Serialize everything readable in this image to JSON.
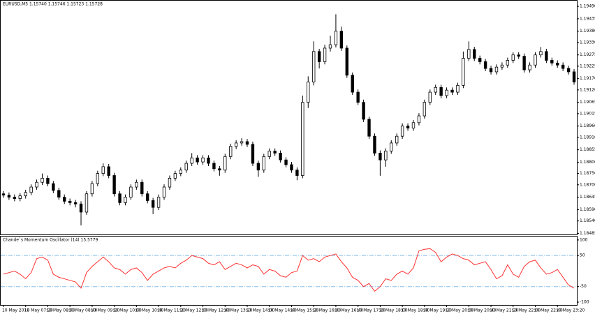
{
  "chart_data": [
    {
      "type": "candlestick",
      "title": "EURUSD,M5 1.15740 1.15746 1.15723 1.15728",
      "open": [
        1.1866,
        1.18654,
        1.18645,
        1.18639,
        1.18651,
        1.18666,
        1.1869,
        1.18711,
        1.18729,
        1.18705,
        1.18675,
        1.18645,
        1.18627,
        1.18621,
        1.18615,
        1.18579,
        1.1866,
        1.18705,
        1.1875,
        1.1878,
        1.18741,
        1.1866,
        1.18621,
        1.18645,
        1.1869,
        1.18711,
        1.1866,
        1.1863,
        1.186,
        1.18645,
        1.1869,
        1.18729,
        1.1875,
        1.18765,
        1.18795,
        1.18819,
        1.18801,
        1.18819,
        1.18795,
        1.18771,
        1.18765,
        1.18825,
        1.1887,
        1.18885,
        1.18891,
        1.18879,
        1.18795,
        1.18765,
        1.18825,
        1.18849,
        1.1884,
        1.1881,
        1.18789,
        1.18765,
        1.18741,
        1.19065,
        1.19155,
        1.1929,
        1.19245,
        1.19305,
        1.1932,
        1.1938,
        1.19305,
        1.19185,
        1.1911,
        1.19065,
        1.1899,
        1.18915,
        1.1884,
        1.1881,
        1.18849,
        1.18885,
        1.18915,
        1.1896,
        1.18951,
        1.18975,
        1.19005,
        1.19065,
        1.1911,
        1.19131,
        1.19095,
        1.19119,
        1.1911,
        1.1914,
        1.1926,
        1.19299,
        1.1926,
        1.19245,
        1.19215,
        1.192,
        1.19221,
        1.1923,
        1.19251,
        1.19275,
        1.19269,
        1.19209,
        1.1923,
        1.19275,
        1.1929,
        1.19251,
        1.19239,
        1.1923,
        1.19215,
        1.192
      ],
      "high": [
        1.18672,
        1.18666,
        1.18657,
        1.18663,
        1.18678,
        1.18702,
        1.18723,
        1.1875,
        1.18741,
        1.18717,
        1.18687,
        1.18657,
        1.18639,
        1.18633,
        1.18627,
        1.18672,
        1.18717,
        1.18762,
        1.18795,
        1.18792,
        1.18753,
        1.18672,
        1.18657,
        1.18702,
        1.18723,
        1.18723,
        1.18672,
        1.18642,
        1.18657,
        1.18702,
        1.18741,
        1.18762,
        1.18777,
        1.18807,
        1.1884,
        1.18831,
        1.18831,
        1.18831,
        1.18807,
        1.18783,
        1.18837,
        1.18882,
        1.18897,
        1.18906,
        1.18903,
        1.18891,
        1.18807,
        1.18837,
        1.18861,
        1.18861,
        1.18852,
        1.18822,
        1.18801,
        1.18777,
        1.19095,
        1.1918,
        1.19335,
        1.19302,
        1.1932,
        1.1936,
        1.19455,
        1.194,
        1.19317,
        1.19197,
        1.19122,
        1.19077,
        1.19002,
        1.18927,
        1.18852,
        1.18861,
        1.18897,
        1.18927,
        1.18972,
        1.18972,
        1.18987,
        1.19017,
        1.19077,
        1.19122,
        1.19143,
        1.19143,
        1.19131,
        1.19131,
        1.19152,
        1.1929,
        1.19335,
        1.19311,
        1.19272,
        1.19257,
        1.19227,
        1.19233,
        1.19242,
        1.19263,
        1.19287,
        1.19287,
        1.19281,
        1.19242,
        1.19287,
        1.1931,
        1.19302,
        1.19263,
        1.19251,
        1.19242,
        1.19227,
        1.19212
      ],
      "low": [
        1.18642,
        1.18633,
        1.18627,
        1.18627,
        1.18639,
        1.18654,
        1.18678,
        1.18699,
        1.18693,
        1.18663,
        1.18633,
        1.18615,
        1.18609,
        1.186,
        1.1852,
        1.18567,
        1.18648,
        1.18693,
        1.18738,
        1.18729,
        1.18648,
        1.18609,
        1.18609,
        1.18633,
        1.18678,
        1.18648,
        1.18618,
        1.1857,
        1.18588,
        1.18633,
        1.18678,
        1.18717,
        1.18738,
        1.18753,
        1.18783,
        1.18789,
        1.18789,
        1.18783,
        1.18759,
        1.1874,
        1.18753,
        1.18813,
        1.18858,
        1.18873,
        1.18867,
        1.18783,
        1.18735,
        1.18753,
        1.18813,
        1.18828,
        1.18798,
        1.18777,
        1.18753,
        1.1872,
        1.18729,
        1.1904,
        1.1914,
        1.19215,
        1.19233,
        1.1929,
        1.19308,
        1.19293,
        1.19173,
        1.19098,
        1.19053,
        1.18978,
        1.18903,
        1.18828,
        1.1874,
        1.1878,
        1.18837,
        1.18873,
        1.18903,
        1.18939,
        1.18939,
        1.18963,
        1.18993,
        1.19053,
        1.19098,
        1.19083,
        1.19083,
        1.19098,
        1.19098,
        1.19128,
        1.19248,
        1.19248,
        1.19233,
        1.19203,
        1.19188,
        1.19188,
        1.19209,
        1.19218,
        1.19239,
        1.19257,
        1.19197,
        1.19197,
        1.19218,
        1.19263,
        1.19239,
        1.19227,
        1.19218,
        1.19203,
        1.19188,
        1.19143
      ],
      "close": [
        1.18654,
        1.18645,
        1.18639,
        1.18651,
        1.18666,
        1.1869,
        1.18711,
        1.18729,
        1.18705,
        1.18675,
        1.18645,
        1.18627,
        1.18621,
        1.18615,
        1.18579,
        1.1866,
        1.18705,
        1.1875,
        1.1878,
        1.18741,
        1.1866,
        1.18621,
        1.18645,
        1.1869,
        1.18711,
        1.1866,
        1.1863,
        1.186,
        1.18645,
        1.1869,
        1.18729,
        1.1875,
        1.18765,
        1.18795,
        1.18819,
        1.18801,
        1.18819,
        1.18795,
        1.18771,
        1.18765,
        1.18825,
        1.1887,
        1.18885,
        1.18891,
        1.18879,
        1.18795,
        1.18765,
        1.18825,
        1.18849,
        1.1884,
        1.1881,
        1.18789,
        1.18765,
        1.18741,
        1.19065,
        1.19155,
        1.1929,
        1.19245,
        1.19305,
        1.1932,
        1.1938,
        1.19305,
        1.19185,
        1.1911,
        1.19065,
        1.1899,
        1.18915,
        1.1884,
        1.1881,
        1.18849,
        1.18885,
        1.18915,
        1.1896,
        1.18951,
        1.18975,
        1.19005,
        1.19065,
        1.1911,
        1.19131,
        1.19095,
        1.19119,
        1.1911,
        1.1914,
        1.1926,
        1.19299,
        1.1926,
        1.19245,
        1.19215,
        1.192,
        1.19221,
        1.1923,
        1.19251,
        1.19275,
        1.19269,
        1.19209,
        1.1923,
        1.19275,
        1.1929,
        1.19251,
        1.19239,
        1.1923,
        1.19215,
        1.192,
        1.19155
      ],
      "bull_color": "#ffffff",
      "bear_color": "#000000",
      "wick_color": "#000000",
      "ylim": [
        1.1848,
        1.19515
      ],
      "yticks": [
        {
          "value": 1.1949,
          "label": "1.19490"
        },
        {
          "value": 1.19435,
          "label": "1.19435"
        },
        {
          "value": 1.1938,
          "label": "1.19380"
        },
        {
          "value": 1.1933,
          "label": "1.19330"
        },
        {
          "value": 1.19275,
          "label": "1.19275"
        },
        {
          "value": 1.19225,
          "label": "1.19225"
        },
        {
          "value": 1.1917,
          "label": "1.19170"
        },
        {
          "value": 1.1912,
          "label": "1.19120"
        },
        {
          "value": 1.19065,
          "label": "1.19065"
        },
        {
          "value": 1.19015,
          "label": "1.19015"
        },
        {
          "value": 1.1896,
          "label": "1.18960"
        },
        {
          "value": 1.1891,
          "label": "1.18910"
        },
        {
          "value": 1.18855,
          "label": "1.18855"
        },
        {
          "value": 1.188,
          "label": "1.18800"
        },
        {
          "value": 1.1875,
          "label": "1.18750"
        },
        {
          "value": 1.187,
          "label": "1.18700"
        },
        {
          "value": 1.18645,
          "label": "1.18645"
        },
        {
          "value": 1.1859,
          "label": "1.18590"
        },
        {
          "value": 1.1854,
          "label": "1.18540"
        },
        {
          "value": 1.18485,
          "label": "1.18485"
        }
      ]
    },
    {
      "type": "line",
      "title": "Chande`s Momentum Oscillator (14) 15.5779",
      "categories": [
        "10 May 2018",
        null,
        null,
        null,
        "10 May 07:20",
        null,
        null,
        null,
        "10 May 08:00",
        null,
        null,
        null,
        "10 May 08:40",
        null,
        null,
        null,
        "10 May 09:20",
        null,
        null,
        null,
        "10 May 10:00",
        null,
        null,
        null,
        "10 May 10:40",
        null,
        null,
        null,
        "10 May 11:20",
        null,
        null,
        null,
        "10 May 12:00",
        null,
        null,
        null,
        "10 May 12:40",
        null,
        null,
        null,
        "10 May 13:20",
        null,
        null,
        null,
        "10 May 14:00",
        null,
        null,
        null,
        "10 May 14:40",
        null,
        null,
        null,
        "10 May 15:20",
        null,
        null,
        null,
        "10 May 16:00",
        null,
        null,
        null,
        "10 May 16:40",
        null,
        null,
        null,
        "10 May 17:20",
        null,
        null,
        null,
        "10 May 18:00",
        null,
        null,
        null,
        "10 May 18:40",
        null,
        null,
        null,
        "10 May 19:20",
        null,
        null,
        null,
        "10 May 20:00",
        null,
        null,
        null,
        "10 May 20:40",
        null,
        null,
        null,
        "10 May 21:20",
        null,
        null,
        null,
        "10 May 22:00",
        null,
        null,
        null,
        "10 May 22:40",
        null,
        null,
        null,
        "10 May 23:20",
        null,
        null,
        null
      ],
      "values": [
        -10,
        -5,
        0,
        -10,
        -25,
        -5,
        40,
        45,
        35,
        -10,
        -20,
        -25,
        -30,
        -35,
        -55,
        -5,
        15,
        30,
        45,
        30,
        10,
        5,
        -10,
        5,
        10,
        -5,
        -30,
        -10,
        0,
        10,
        15,
        10,
        25,
        35,
        50,
        45,
        40,
        25,
        20,
        30,
        5,
        15,
        25,
        20,
        10,
        20,
        15,
        -10,
        5,
        0,
        -15,
        -20,
        -5,
        0,
        50,
        35,
        40,
        30,
        45,
        50,
        55,
        30,
        10,
        -20,
        -30,
        -50,
        -40,
        -65,
        -50,
        -25,
        -30,
        -10,
        0,
        -10,
        10,
        65,
        70,
        72,
        60,
        30,
        45,
        55,
        50,
        40,
        35,
        20,
        25,
        30,
        5,
        -25,
        -15,
        20,
        -10,
        -20,
        15,
        30,
        35,
        10,
        -10,
        -5,
        5,
        -20,
        -45,
        -55
      ],
      "color": "#ff3030",
      "levels": [
        50,
        -50
      ],
      "level_color": "#87bde8",
      "ylim": [
        -109,
        111
      ],
      "yticks": [
        100,
        50,
        -50,
        -100
      ]
    }
  ]
}
